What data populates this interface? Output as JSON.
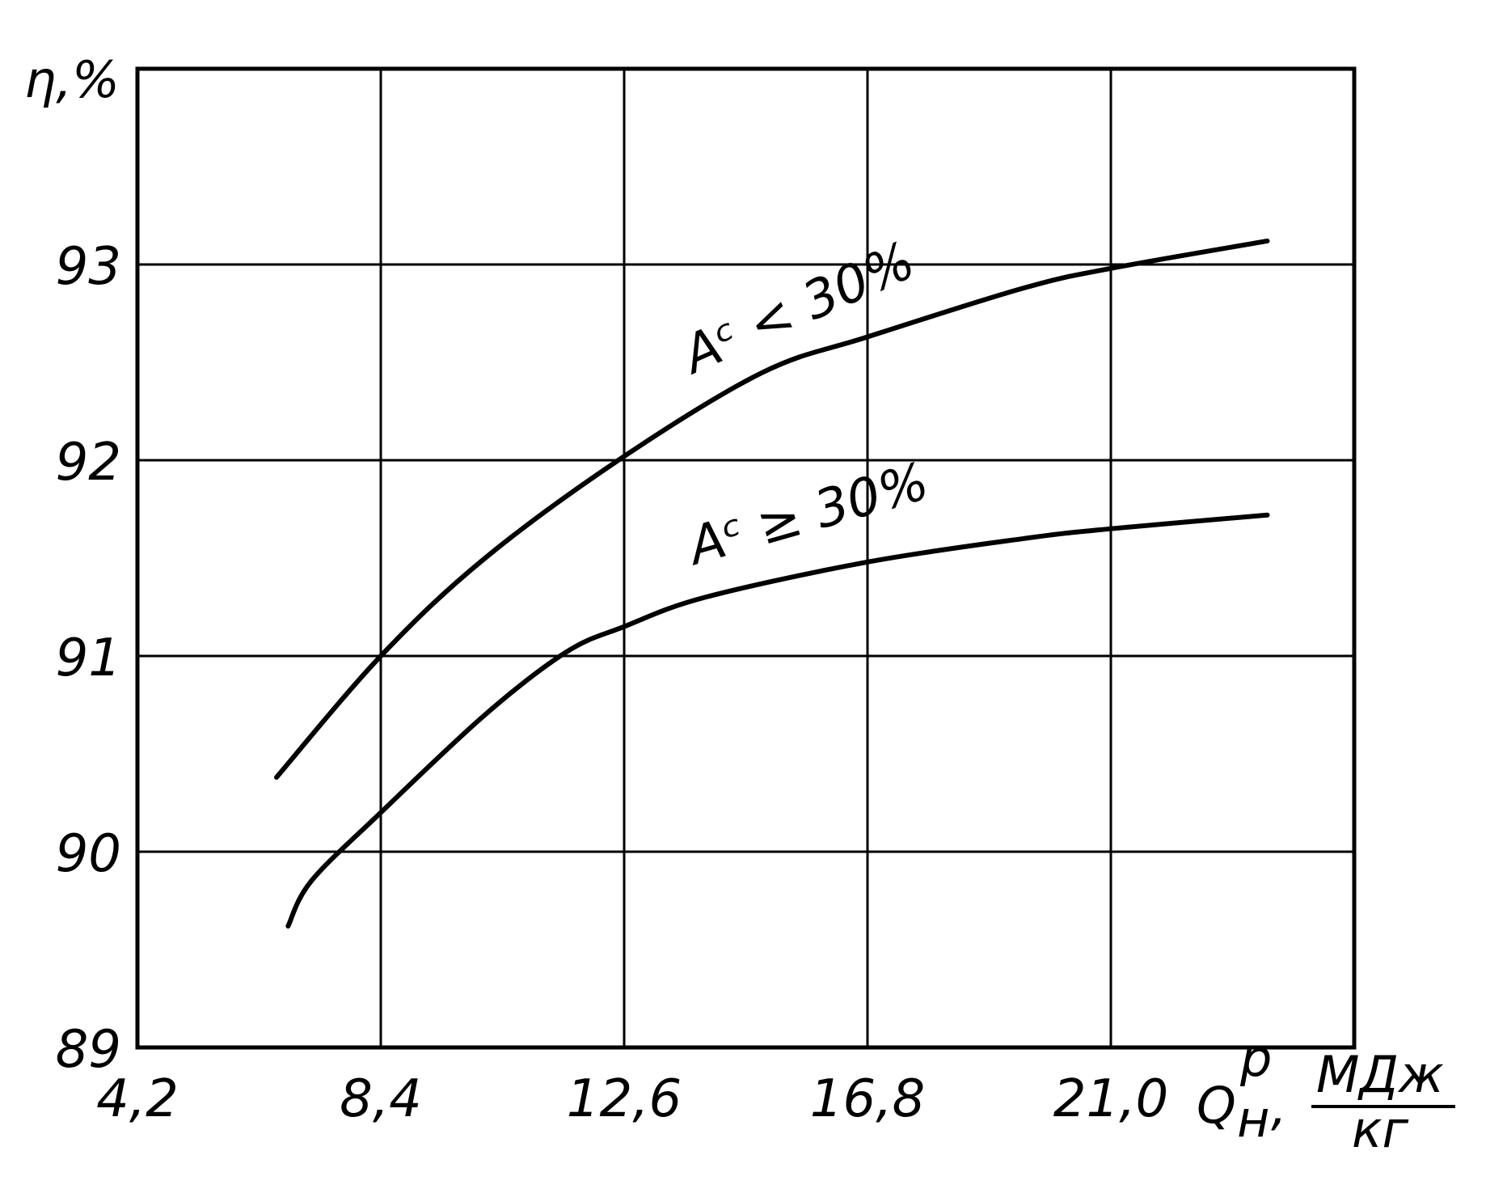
{
  "chart_data": {
    "type": "line",
    "xlabel": "Q",
    "xlabel_sub": "н",
    "xlabel_sup": "р",
    "x_unit_num": "МДж",
    "x_unit_den": "кг",
    "ylabel": "η,%",
    "x_ticks": [
      "4,2",
      "8,4",
      "12,6",
      "16,8",
      "21,0"
    ],
    "y_ticks": [
      "89",
      "90",
      "91",
      "92",
      "93"
    ],
    "xlim": [
      4.2,
      25.2
    ],
    "ylim": [
      89,
      94
    ],
    "grid": true,
    "series": [
      {
        "name": "Aᶜ < 30%",
        "x": [
          6.6,
          8.4,
          10.2,
          12.6,
          15.0,
          16.8,
          19.5,
          21.0,
          23.7
        ],
        "y": [
          90.38,
          91.0,
          91.5,
          92.02,
          92.45,
          92.63,
          92.88,
          92.98,
          93.12
        ]
      },
      {
        "name": "Aᶜ ≥ 30%",
        "x": [
          6.8,
          7.2,
          8.4,
          10.2,
          11.6,
          12.6,
          14.0,
          16.8,
          19.5,
          21.0,
          23.7
        ],
        "y": [
          89.62,
          89.85,
          90.2,
          90.7,
          91.02,
          91.15,
          91.3,
          91.48,
          91.6,
          91.65,
          91.72
        ]
      }
    ]
  }
}
